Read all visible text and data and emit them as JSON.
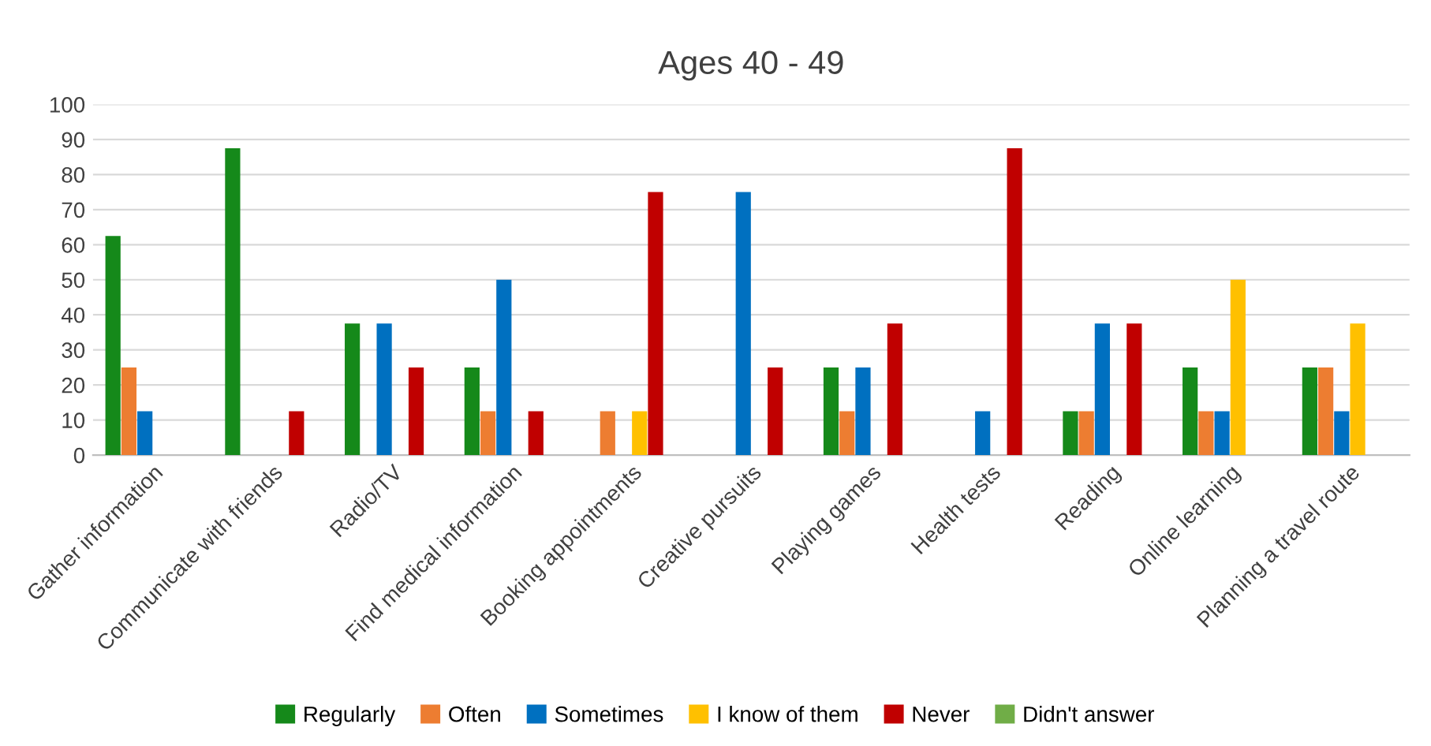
{
  "chart_data": {
    "type": "bar",
    "title": "Ages 40 - 49",
    "categories": [
      "Gather information",
      "Communicate with friends",
      "Radio/TV",
      "Find medical information",
      "Booking appointments",
      "Creative pursuits",
      "Playing games",
      "Health tests",
      "Reading",
      "Online learning",
      "Planning a travel route"
    ],
    "series": [
      {
        "name": "Regularly",
        "color": "#15891a",
        "values": [
          62.5,
          87.5,
          37.5,
          25,
          0,
          0,
          25,
          0,
          12.5,
          25,
          25
        ]
      },
      {
        "name": "Often",
        "color": "#ed7d31",
        "values": [
          25,
          0,
          0,
          12.5,
          12.5,
          0,
          12.5,
          0,
          12.5,
          12.5,
          25
        ]
      },
      {
        "name": "Sometimes",
        "color": "#0070c0",
        "values": [
          12.5,
          0,
          37.5,
          50,
          0,
          75,
          25,
          12.5,
          37.5,
          12.5,
          12.5
        ]
      },
      {
        "name": "I know of them",
        "color": "#ffc000",
        "values": [
          0,
          0,
          0,
          0,
          12.5,
          0,
          0,
          0,
          0,
          50,
          37.5
        ]
      },
      {
        "name": "Never",
        "color": "#c00000",
        "values": [
          0,
          12.5,
          25,
          12.5,
          75,
          25,
          37.5,
          87.5,
          37.5,
          0,
          0
        ]
      },
      {
        "name": "Didn't answer",
        "color": "#70ad47",
        "values": [
          0,
          0,
          0,
          0,
          0,
          0,
          0,
          0,
          0,
          0,
          0
        ]
      }
    ],
    "ylim": [
      0,
      100
    ],
    "yticks": [
      0,
      10,
      20,
      30,
      40,
      50,
      60,
      70,
      80,
      90,
      100
    ],
    "grid": "y",
    "legend": "bottom"
  }
}
